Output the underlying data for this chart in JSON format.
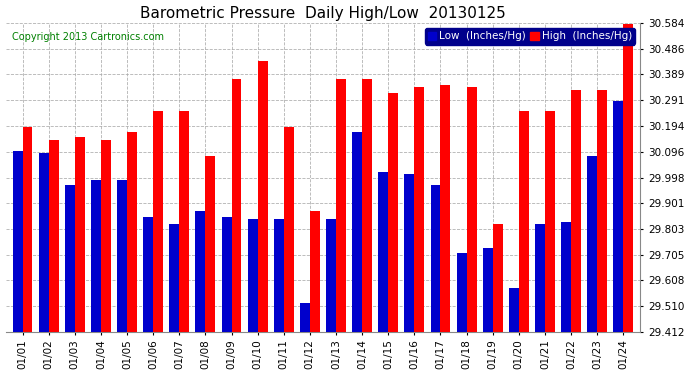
{
  "title": "Barometric Pressure  Daily High/Low  20130125",
  "copyright": "Copyright 2013 Cartronics.com",
  "legend_low": "Low  (Inches/Hg)",
  "legend_high": "High  (Inches/Hg)",
  "dates": [
    "01/01",
    "01/02",
    "01/03",
    "01/04",
    "01/05",
    "01/06",
    "01/07",
    "01/08",
    "01/09",
    "01/10",
    "01/11",
    "01/12",
    "01/13",
    "01/14",
    "01/15",
    "01/16",
    "01/17",
    "01/18",
    "01/19",
    "01/20",
    "01/21",
    "01/22",
    "01/23",
    "01/24"
  ],
  "highs": [
    30.19,
    30.14,
    30.15,
    30.14,
    30.17,
    30.25,
    30.25,
    30.08,
    30.37,
    30.44,
    30.19,
    29.87,
    30.37,
    30.37,
    30.32,
    30.34,
    30.35,
    30.34,
    29.82,
    30.25,
    30.25,
    30.33,
    30.33,
    30.58
  ],
  "lows": [
    30.1,
    30.09,
    29.97,
    29.99,
    29.99,
    29.85,
    29.82,
    29.87,
    29.85,
    29.84,
    29.84,
    29.52,
    29.84,
    30.17,
    30.02,
    30.01,
    29.97,
    29.71,
    29.73,
    29.58,
    29.82,
    29.83,
    30.08,
    30.29
  ],
  "ylim_min": 29.412,
  "ylim_max": 30.584,
  "yticks": [
    29.412,
    29.51,
    29.608,
    29.705,
    29.803,
    29.901,
    29.998,
    30.096,
    30.194,
    30.291,
    30.389,
    30.486,
    30.584
  ],
  "bar_color_high": "#FF0000",
  "bar_color_low": "#0000CC",
  "bg_color": "#FFFFFF",
  "grid_color": "#AAAAAA",
  "title_fontsize": 11,
  "tick_fontsize": 7.5,
  "copyright_fontsize": 7,
  "bar_width": 0.38
}
